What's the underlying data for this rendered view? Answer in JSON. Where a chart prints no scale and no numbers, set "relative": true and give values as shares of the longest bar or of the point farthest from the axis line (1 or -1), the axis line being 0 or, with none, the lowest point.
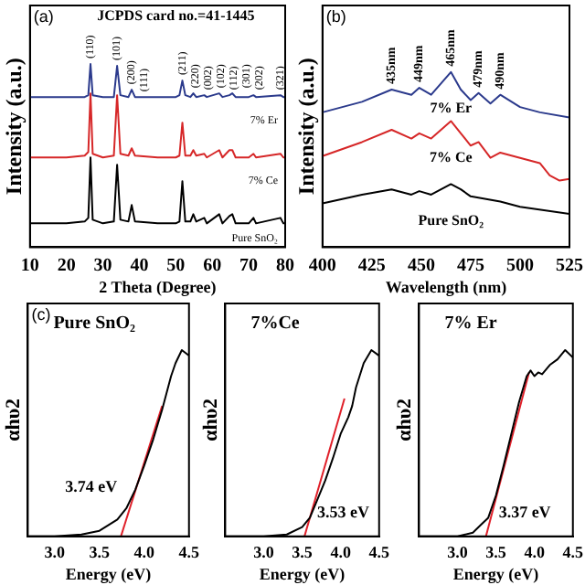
{
  "chart_data": [
    {
      "type": "line",
      "relative": true,
      "xlabel": "2 Theta (Degree)",
      "ylabel": "Intensity (a.u.)",
      "xlim": [
        10,
        80
      ],
      "xticks": [
        10,
        20,
        30,
        40,
        50,
        60,
        70,
        80
      ],
      "grid": false,
      "legend": false,
      "x": [
        10,
        20,
        25,
        26,
        26.6,
        27.2,
        30,
        33,
        33.9,
        34.8,
        37,
        37.9,
        38.8,
        45,
        50,
        51,
        51.8,
        52.6,
        54,
        54.8,
        55.6,
        57.8,
        58.5,
        61.9,
        62.8,
        64.7,
        65.5,
        66.4,
        70,
        71.3,
        72,
        78.7,
        79.5,
        80
      ],
      "series": [
        {
          "name": "Pure SnO₂",
          "color": "#000000",
          "values": [
            0.13,
            0.13,
            0.14,
            0.16,
            0.49,
            0.15,
            0.13,
            0.14,
            0.45,
            0.15,
            0.14,
            0.23,
            0.14,
            0.13,
            0.13,
            0.14,
            0.36,
            0.14,
            0.14,
            0.18,
            0.14,
            0.16,
            0.13,
            0.18,
            0.13,
            0.17,
            0.18,
            0.13,
            0.13,
            0.16,
            0.13,
            0.16,
            0.13,
            0.13
          ]
        },
        {
          "name": "7% Ce",
          "color": "#d62728",
          "values": [
            0.49,
            0.49,
            0.5,
            0.52,
            0.84,
            0.51,
            0.49,
            0.5,
            0.83,
            0.51,
            0.5,
            0.54,
            0.5,
            0.49,
            0.49,
            0.5,
            0.68,
            0.5,
            0.5,
            0.53,
            0.5,
            0.51,
            0.49,
            0.53,
            0.49,
            0.53,
            0.53,
            0.49,
            0.49,
            0.51,
            0.49,
            0.51,
            0.49,
            0.49
          ]
        },
        {
          "name": "7% Er",
          "color": "#2b3a8c",
          "values": [
            0.82,
            0.82,
            0.82,
            0.83,
            1,
            0.83,
            0.82,
            0.82,
            0.99,
            0.83,
            0.82,
            0.86,
            0.82,
            0.82,
            0.82,
            0.83,
            0.91,
            0.83,
            0.82,
            0.84,
            0.82,
            0.83,
            0.82,
            0.84,
            0.82,
            0.83,
            0.84,
            0.82,
            0.82,
            0.83,
            0.82,
            0.83,
            0.82,
            0.82
          ]
        }
      ],
      "annotations": [
        "(a)",
        "JCPDS card no.=41-1445",
        {
          "text": "(110)",
          "x": 26.6,
          "y": 1
        },
        {
          "text": "(101)",
          "x": 33.9,
          "y": 0.99
        },
        {
          "text": "(200)",
          "x": 37.9,
          "y": 0.86
        },
        {
          "text": "(111)",
          "x": 38.8,
          "y": 0.82
        },
        {
          "text": "(211)",
          "x": 51.8,
          "y": 0.91
        },
        {
          "text": "(220)",
          "x": 54.8,
          "y": 0.84
        },
        {
          "text": "(002)",
          "x": 57.8,
          "y": 0.83
        },
        {
          "text": "(102)",
          "x": 61.9,
          "y": 0.84
        },
        {
          "text": "(112)",
          "x": 64.7,
          "y": 0.83
        },
        {
          "text": "(301)",
          "x": 65.5,
          "y": 0.84
        },
        {
          "text": "(202)",
          "x": 71.3,
          "y": 0.83
        },
        {
          "text": "(321)",
          "x": 78.7,
          "y": 0.83
        }
      ]
    },
    {
      "type": "line",
      "relative": true,
      "xlabel": "Wavelength (nm)",
      "ylabel": "Intensity (a.u.)",
      "xlim": [
        400,
        525
      ],
      "xticks": [
        400,
        425,
        450,
        475,
        500,
        525
      ],
      "grid": false,
      "legend": false,
      "series": [
        {
          "name": "Pure SnO₂",
          "color": "#000000",
          "x": [
            400,
            420,
            435,
            445,
            449,
            455,
            465,
            470,
            475,
            490,
            500,
            525
          ],
          "values": [
            0.25,
            0.3,
            0.33,
            0.3,
            0.32,
            0.3,
            0.36,
            0.33,
            0.29,
            0.26,
            0.23,
            0.19
          ]
        },
        {
          "name": "7% Ce",
          "color": "#d62728",
          "x": [
            400,
            420,
            435,
            445,
            449,
            455,
            465,
            470,
            475,
            479,
            485,
            490,
            500,
            510,
            515,
            520,
            525
          ],
          "values": [
            0.52,
            0.6,
            0.67,
            0.62,
            0.65,
            0.62,
            0.72,
            0.65,
            0.58,
            0.6,
            0.51,
            0.54,
            0.51,
            0.48,
            0.41,
            0.38,
            0.39
          ]
        },
        {
          "name": "7% Er",
          "color": "#2b3a8c",
          "x": [
            400,
            420,
            435,
            445,
            449,
            455,
            465,
            470,
            475,
            479,
            485,
            490,
            500,
            510,
            525
          ],
          "values": [
            0.77,
            0.83,
            0.9,
            0.87,
            0.91,
            0.87,
            1,
            0.9,
            0.84,
            0.88,
            0.82,
            0.87,
            0.8,
            0.77,
            0.74
          ]
        }
      ],
      "annotations": [
        "(b)",
        {
          "text": "435nm",
          "x": 435,
          "y": 0.9
        },
        {
          "text": "449nm",
          "x": 449,
          "y": 0.91
        },
        {
          "text": "465nm",
          "x": 465,
          "y": 1
        },
        {
          "text": "479nm",
          "x": 479,
          "y": 0.88
        },
        {
          "text": "490nm",
          "x": 490,
          "y": 0.87
        }
      ]
    },
    {
      "type": "line",
      "relative": true,
      "title": "Pure SnO₂",
      "xlabel": "Energy (eV)",
      "ylabel": "αhυ2",
      "xlim": [
        2.7,
        4.5
      ],
      "xticks": [
        {
          "value": 3,
          "label": "3.0"
        },
        {
          "value": 3.5,
          "label": "3.5"
        },
        {
          "value": 4,
          "label": "4.0"
        },
        {
          "value": 4.5,
          "label": "4.5"
        }
      ],
      "grid": false,
      "legend": false,
      "series": [
        {
          "color": "#000000",
          "x": [
            2.7,
            3.0,
            3.3,
            3.5,
            3.7,
            3.8,
            3.9,
            4.0,
            4.1,
            4.2,
            4.3,
            4.35,
            4.42,
            4.5
          ],
          "values": [
            0,
            0,
            0.01,
            0.03,
            0.09,
            0.15,
            0.25,
            0.38,
            0.52,
            0.68,
            0.86,
            0.93,
            1,
            0.97
          ]
        },
        {
          "color": "#e0202a",
          "x": [
            3.74,
            4.2
          ],
          "values": [
            0,
            0.7
          ]
        }
      ],
      "annotations": [
        "(c)",
        {
          "text": "3.74 eV",
          "x": 3.74,
          "y": 0
        }
      ]
    },
    {
      "type": "line",
      "relative": true,
      "title": "7%Ce",
      "xlabel": "Energy (eV)",
      "ylabel": "αhυ2",
      "xlim": [
        2.5,
        4.5
      ],
      "xticks": [
        {
          "value": 3,
          "label": "3.0"
        },
        {
          "value": 3.5,
          "label": "3.5"
        },
        {
          "value": 4,
          "label": "4.0"
        },
        {
          "value": 4.5,
          "label": "4.5"
        }
      ],
      "grid": false,
      "legend": false,
      "series": [
        {
          "color": "#000000",
          "x": [
            2.5,
            3.0,
            3.3,
            3.5,
            3.6,
            3.7,
            3.8,
            3.9,
            4.0,
            4.1,
            4.15,
            4.2,
            4.3,
            4.4,
            4.5
          ],
          "values": [
            0,
            0,
            0.01,
            0.05,
            0.1,
            0.2,
            0.3,
            0.42,
            0.55,
            0.64,
            0.7,
            0.8,
            0.93,
            1,
            0.97
          ]
        },
        {
          "color": "#e0202a",
          "x": [
            3.53,
            4.05
          ],
          "values": [
            0,
            0.74
          ]
        }
      ],
      "annotations": [
        {
          "text": "3.53 eV",
          "x": 3.53,
          "y": 0
        }
      ]
    },
    {
      "type": "line",
      "relative": true,
      "title": "7% Er",
      "xlabel": "Energy (eV)",
      "ylabel": "αhυ2",
      "xlim": [
        2.5,
        4.5
      ],
      "xticks": [
        {
          "value": 3,
          "label": "3.0"
        },
        {
          "value": 3.5,
          "label": "3.5"
        },
        {
          "value": 4,
          "label": "4.0"
        },
        {
          "value": 4.5,
          "label": "4.5"
        }
      ],
      "grid": false,
      "legend": false,
      "series": [
        {
          "color": "#000000",
          "x": [
            2.5,
            3.0,
            3.2,
            3.3,
            3.4,
            3.5,
            3.6,
            3.7,
            3.8,
            3.9,
            3.95,
            4.0,
            4.05,
            4.1,
            4.2,
            4.3,
            4.4,
            4.5
          ],
          "values": [
            0,
            0,
            0.02,
            0.06,
            0.1,
            0.22,
            0.38,
            0.55,
            0.72,
            0.86,
            0.89,
            0.86,
            0.88,
            0.87,
            0.92,
            0.95,
            1,
            0.96
          ]
        },
        {
          "color": "#e0202a",
          "x": [
            3.37,
            3.93
          ],
          "values": [
            0,
            0.88
          ]
        }
      ],
      "annotations": [
        {
          "text": "3.37 eV",
          "x": 3.37,
          "y": 0
        }
      ]
    }
  ]
}
